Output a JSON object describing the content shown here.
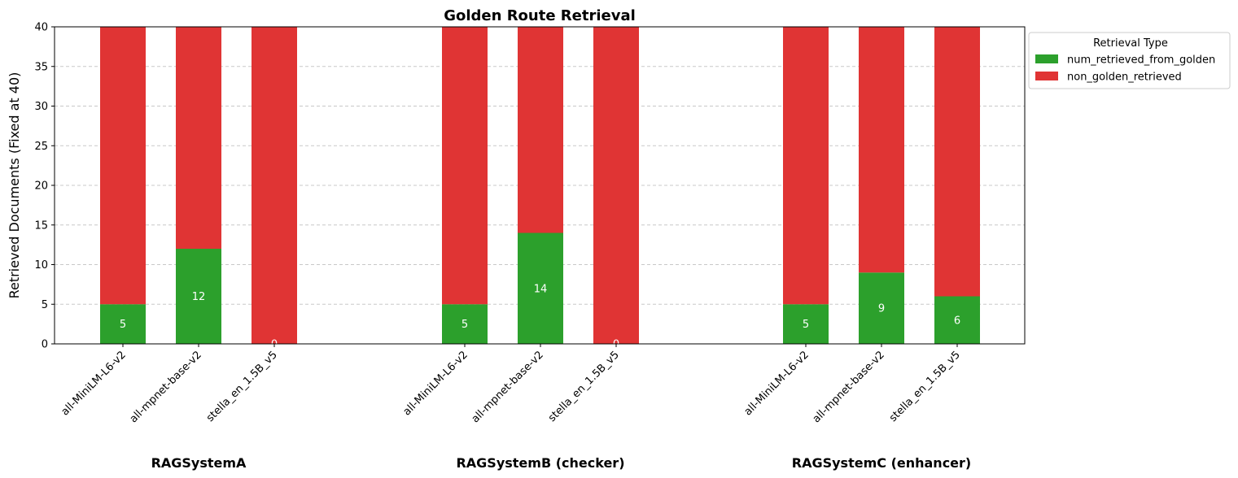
{
  "chart_data": {
    "type": "bar",
    "stacked": true,
    "title": "Golden Route Retrieval",
    "xlabel": "",
    "ylabel": "Retrieved Documents (Fixed at 40)",
    "ylim": [
      0,
      40
    ],
    "yticks": [
      0,
      5,
      10,
      15,
      20,
      25,
      30,
      35,
      40
    ],
    "grid": "y-dashed",
    "legend_placement": "outside-top-right",
    "legend_title": "Retrieval Type",
    "groups": [
      {
        "name": "RAGSystemA",
        "categories": [
          "all-MiniLM-L6-v2",
          "all-mpnet-base-v2",
          "stella_en_1.5B_v5"
        ],
        "num_retrieved_from_golden": [
          5,
          12,
          0
        ],
        "non_golden_retrieved": [
          35,
          28,
          40
        ]
      },
      {
        "name": "RAGSystemB (checker)",
        "categories": [
          "all-MiniLM-L6-v2",
          "all-mpnet-base-v2",
          "stella_en_1.5B_v5"
        ],
        "num_retrieved_from_golden": [
          5,
          14,
          0
        ],
        "non_golden_retrieved": [
          35,
          26,
          40
        ]
      },
      {
        "name": "RAGSystemC (enhancer)",
        "categories": [
          "all-MiniLM-L6-v2",
          "all-mpnet-base-v2",
          "stella_en_1.5B_v5"
        ],
        "num_retrieved_from_golden": [
          5,
          9,
          6
        ],
        "non_golden_retrieved": [
          35,
          31,
          34
        ]
      }
    ],
    "series": [
      {
        "name": "num_retrieved_from_golden",
        "color": "#2ca02c"
      },
      {
        "name": "non_golden_retrieved",
        "color": "#e03434"
      }
    ]
  }
}
